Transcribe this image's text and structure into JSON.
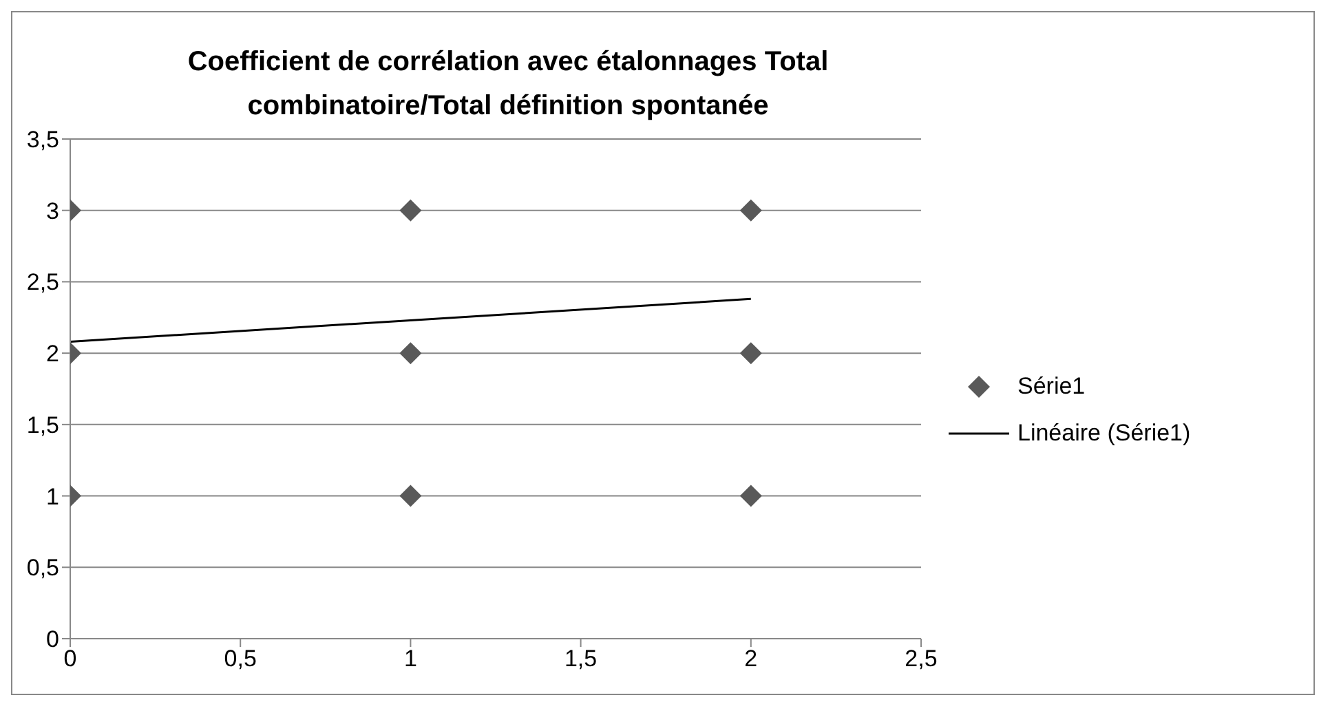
{
  "chart_data": {
    "type": "scatter",
    "title": "Coefficient de corrélation avec étalonnages Total combinatoire/Total définition spontanée",
    "series": [
      {
        "name": "Série1",
        "marker": "diamond",
        "color": "#595959",
        "x": [
          0,
          0,
          0,
          1,
          1,
          1,
          2,
          2,
          2
        ],
        "values": [
          1,
          2,
          3,
          1,
          2,
          3,
          1,
          2,
          3
        ]
      },
      {
        "name": "Linéaire (Série1)",
        "type": "line",
        "color": "#000000",
        "x": [
          0,
          2
        ],
        "values": [
          2.08,
          2.38
        ]
      }
    ],
    "xlim": [
      0,
      2.5
    ],
    "xticks": [
      0,
      {
        "value": 0.5,
        "label": "0,5"
      },
      1,
      {
        "value": 1.5,
        "label": "1,5"
      },
      2,
      {
        "value": 2.5,
        "label": "2,5"
      }
    ],
    "ylim": [
      0,
      3.5
    ],
    "yticks": [
      0,
      {
        "value": 0.5,
        "label": "0,5"
      },
      1,
      {
        "value": 1.5,
        "label": "1,5"
      },
      2,
      {
        "value": 2.5,
        "label": "2,5"
      },
      3,
      {
        "value": 3.5,
        "label": "3,5"
      }
    ],
    "grid": "y",
    "legend": "right"
  }
}
